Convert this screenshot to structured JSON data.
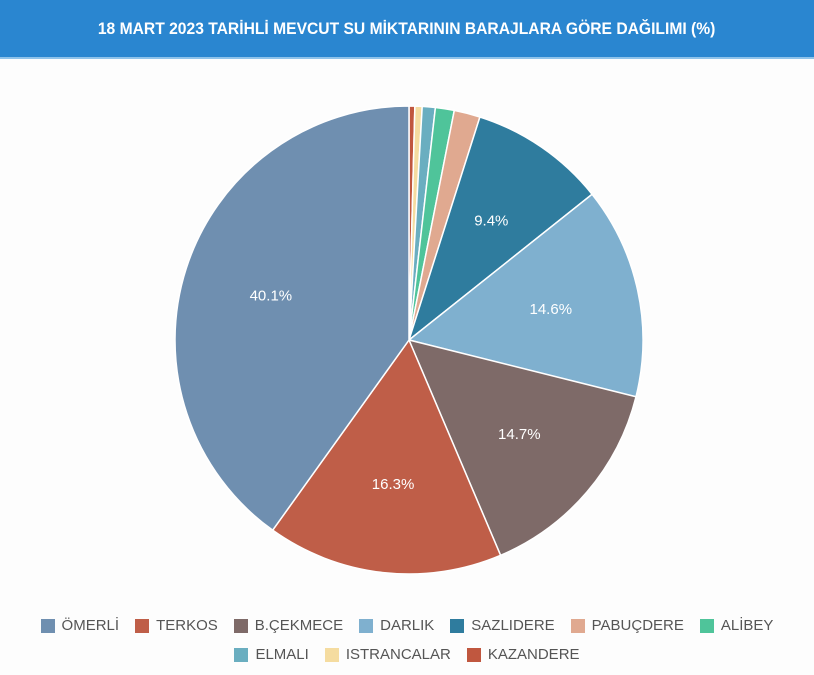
{
  "header": {
    "title": "18 MART 2023 TARİHLİ MEVCUT SU MİKTARININ BARAJLARA GÖRE DAĞILIMI (%)"
  },
  "chart_data": {
    "type": "pie",
    "title": "18 MART 2023 TARİHLİ MEVCUT SU MİKTARININ BARAJLARA GÖRE DAĞILIMI (%)",
    "start_angle": "top, clockwise",
    "slices": [
      {
        "name": "KAZANDERE",
        "value": 0.4,
        "color": "#c0573f",
        "label": ""
      },
      {
        "name": "ISTRANCALAR",
        "value": 0.5,
        "color": "#f5dca0",
        "label": ""
      },
      {
        "name": "ELMALI",
        "value": 0.9,
        "color": "#6aaec0",
        "label": ""
      },
      {
        "name": "ALİBEY",
        "value": 1.3,
        "color": "#4fc49a",
        "label": ""
      },
      {
        "name": "PABUÇDERE",
        "value": 1.8,
        "color": "#e0a990",
        "label": ""
      },
      {
        "name": "SAZLIDERE",
        "value": 9.4,
        "color": "#2f7c9e",
        "label": "9.4%"
      },
      {
        "name": "DARLIK",
        "value": 14.6,
        "color": "#7fb0cf",
        "label": "14.6%"
      },
      {
        "name": "B.ÇEKMECE",
        "value": 14.7,
        "color": "#7e6a68",
        "label": "14.7%"
      },
      {
        "name": "TERKOS",
        "value": 16.3,
        "color": "#bf5e48",
        "label": "16.3%"
      },
      {
        "name": "ÖMERLİ",
        "value": 40.1,
        "color": "#6f8fb0",
        "label": "40.1%"
      }
    ],
    "legend": {
      "position": "bottom",
      "entries": [
        "ÖMERLİ",
        "TERKOS",
        "B.ÇEKMECE",
        "DARLIK",
        "SAZLIDERE",
        "PABUÇDERE",
        "ALİBEY",
        "ELMALI",
        "ISTRANCALAR",
        "KAZANDERE"
      ]
    }
  },
  "legend": {
    "items": [
      {
        "label": "ÖMERLİ",
        "color": "#6f8fb0"
      },
      {
        "label": "TERKOS",
        "color": "#bf5e48"
      },
      {
        "label": "B.ÇEKMECE",
        "color": "#7e6a68"
      },
      {
        "label": "DARLIK",
        "color": "#7fb0cf"
      },
      {
        "label": "SAZLIDERE",
        "color": "#2f7c9e"
      },
      {
        "label": "PABUÇDERE",
        "color": "#e0a990"
      },
      {
        "label": "ALİBEY",
        "color": "#4fc49a"
      },
      {
        "label": "ELMALI",
        "color": "#6aaec0"
      },
      {
        "label": "ISTRANCALAR",
        "color": "#f5dca0"
      },
      {
        "label": "KAZANDERE",
        "color": "#c0573f"
      }
    ]
  }
}
